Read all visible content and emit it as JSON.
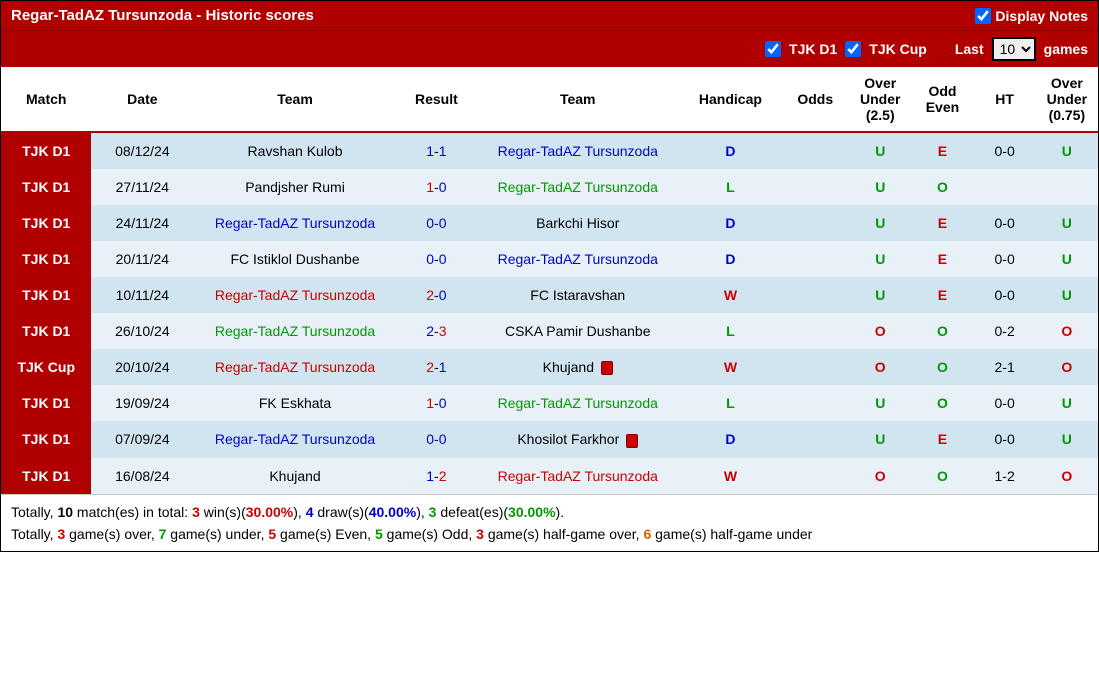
{
  "header": {
    "title": "Regar-TadAZ Tursunzoda - Historic scores",
    "display_notes_label": "Display Notes",
    "display_notes_checked": true
  },
  "filters": {
    "tjk_d1_label": "TJK D1",
    "tjk_d1_checked": true,
    "tjk_cup_label": "TJK Cup",
    "tjk_cup_checked": true,
    "last_label": "Last",
    "games_count": "10",
    "games_label": "games"
  },
  "columns": [
    "Match",
    "Date",
    "Team",
    "Result",
    "Team",
    "Handicap",
    "Odds",
    "Over Under (2.5)",
    "Odd Even",
    "HT",
    "Over Under (0.75)"
  ],
  "rows": [
    {
      "match": "TJK D1",
      "date": "08/12/24",
      "home": "Ravshan Kulob",
      "home_cls": "team-black",
      "s1": "1",
      "s2": "1",
      "away": "Regar-TadAZ Tursunzoda",
      "away_cls": "team-blue",
      "away_card": false,
      "hand": "D",
      "hand_cls": "r-d",
      "ou25": "U",
      "ou25_cls": "ou-u",
      "oe": "E",
      "oe_cls": "oe-e",
      "ht": "0-0",
      "ou075": "U",
      "ou075_cls": "ou-u"
    },
    {
      "match": "TJK D1",
      "date": "27/11/24",
      "home": "Pandjsher Rumi",
      "home_cls": "team-black",
      "s1": "1",
      "s1_cls": "score-red",
      "s2": "0",
      "away": "Regar-TadAZ Tursunzoda",
      "away_cls": "team-green",
      "away_card": false,
      "hand": "L",
      "hand_cls": "r-l",
      "ou25": "U",
      "ou25_cls": "ou-u",
      "oe": "O",
      "oe_cls": "oe-o",
      "ht": "",
      "ou075": "",
      "ou075_cls": ""
    },
    {
      "match": "TJK D1",
      "date": "24/11/24",
      "home": "Regar-TadAZ Tursunzoda",
      "home_cls": "team-blue",
      "s1": "0",
      "s2": "0",
      "away": "Barkchi Hisor",
      "away_cls": "team-black",
      "away_card": false,
      "hand": "D",
      "hand_cls": "r-d",
      "ou25": "U",
      "ou25_cls": "ou-u",
      "oe": "E",
      "oe_cls": "oe-e",
      "ht": "0-0",
      "ou075": "U",
      "ou075_cls": "ou-u"
    },
    {
      "match": "TJK D1",
      "date": "20/11/24",
      "home": "FC Istiklol Dushanbe",
      "home_cls": "team-black",
      "s1": "0",
      "s2": "0",
      "away": "Regar-TadAZ Tursunzoda",
      "away_cls": "team-blue",
      "away_card": false,
      "hand": "D",
      "hand_cls": "r-d",
      "ou25": "U",
      "ou25_cls": "ou-u",
      "oe": "E",
      "oe_cls": "oe-e",
      "ht": "0-0",
      "ou075": "U",
      "ou075_cls": "ou-u"
    },
    {
      "match": "TJK D1",
      "date": "10/11/24",
      "home": "Regar-TadAZ Tursunzoda",
      "home_cls": "team-red",
      "s1": "2",
      "s1_cls": "score-red",
      "s2": "0",
      "away": "FC Istaravshan",
      "away_cls": "team-black",
      "away_card": false,
      "hand": "W",
      "hand_cls": "r-w",
      "ou25": "U",
      "ou25_cls": "ou-u",
      "oe": "E",
      "oe_cls": "oe-e",
      "ht": "0-0",
      "ou075": "U",
      "ou075_cls": "ou-u"
    },
    {
      "match": "TJK D1",
      "date": "26/10/24",
      "home": "Regar-TadAZ Tursunzoda",
      "home_cls": "team-green",
      "s1": "2",
      "s2": "3",
      "s2_cls": "score-red",
      "away": "CSKA Pamir Dushanbe",
      "away_cls": "team-black",
      "away_card": false,
      "hand": "L",
      "hand_cls": "r-l",
      "ou25": "O",
      "ou25_cls": "ou-o",
      "oe": "O",
      "oe_cls": "oe-o",
      "ht": "0-2",
      "ou075": "O",
      "ou075_cls": "ou-o"
    },
    {
      "match": "TJK Cup",
      "date": "20/10/24",
      "home": "Regar-TadAZ Tursunzoda",
      "home_cls": "team-red",
      "s1": "2",
      "s1_cls": "score-red",
      "s2": "1",
      "away": "Khujand",
      "away_cls": "team-black",
      "away_card": true,
      "hand": "W",
      "hand_cls": "r-w",
      "ou25": "O",
      "ou25_cls": "ou-o",
      "oe": "O",
      "oe_cls": "oe-o",
      "ht": "2-1",
      "ou075": "O",
      "ou075_cls": "ou-o"
    },
    {
      "match": "TJK D1",
      "date": "19/09/24",
      "home": "FK Eskhata",
      "home_cls": "team-black",
      "s1": "1",
      "s1_cls": "score-red",
      "s2": "0",
      "away": "Regar-TadAZ Tursunzoda",
      "away_cls": "team-green",
      "away_card": false,
      "hand": "L",
      "hand_cls": "r-l",
      "ou25": "U",
      "ou25_cls": "ou-u",
      "oe": "O",
      "oe_cls": "oe-o",
      "ht": "0-0",
      "ou075": "U",
      "ou075_cls": "ou-u"
    },
    {
      "match": "TJK D1",
      "date": "07/09/24",
      "home": "Regar-TadAZ Tursunzoda",
      "home_cls": "team-blue",
      "s1": "0",
      "s2": "0",
      "away": "Khosilot Farkhor",
      "away_cls": "team-black",
      "away_card": true,
      "hand": "D",
      "hand_cls": "r-d",
      "ou25": "U",
      "ou25_cls": "ou-u",
      "oe": "E",
      "oe_cls": "oe-e",
      "ht": "0-0",
      "ou075": "U",
      "ou075_cls": "ou-u"
    },
    {
      "match": "TJK D1",
      "date": "16/08/24",
      "home": "Khujand",
      "home_cls": "team-black",
      "s1": "1",
      "s2": "2",
      "s2_cls": "score-red",
      "away": "Regar-TadAZ Tursunzoda",
      "away_cls": "team-red",
      "away_card": false,
      "hand": "W",
      "hand_cls": "r-w",
      "ou25": "O",
      "ou25_cls": "ou-o",
      "oe": "O",
      "oe_cls": "oe-o",
      "ht": "1-2",
      "ou075": "O",
      "ou075_cls": "ou-o"
    }
  ],
  "summary": {
    "line1": {
      "prefix": "Totally, ",
      "total": "10",
      "t1": " match(es) in total: ",
      "wins": "3",
      "w_pct": "30.00%",
      "t2": " win(s)(",
      "t3": "), ",
      "draws": "4",
      "d_pct": "40.00%",
      "t4": " draw(s)(",
      "t5": "), ",
      "defeats": "3",
      "def_pct": "30.00%",
      "t6": " defeat(es)(",
      "t7": ")."
    },
    "line2": {
      "prefix": "Totally, ",
      "over": "3",
      "t1": " game(s) over, ",
      "under": "7",
      "t2": " game(s) under, ",
      "even": "5",
      "t3": " game(s) Even, ",
      "odd": "5",
      "t4": " game(s) Odd, ",
      "hg_over": "3",
      "t5": " game(s) half-game over, ",
      "hg_under": "6",
      "t6": " game(s) half-game under"
    }
  }
}
